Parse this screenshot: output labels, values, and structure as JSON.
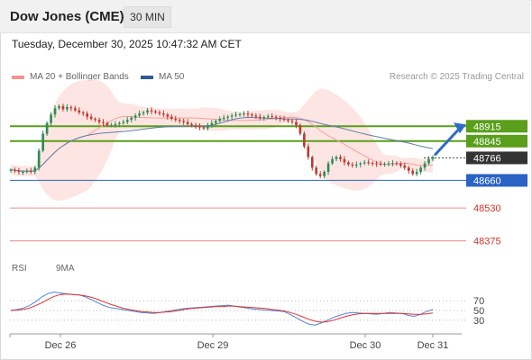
{
  "header": {
    "title": "Dow Jones (CME)",
    "timeframe": "30 MIN"
  },
  "datetime": "Tuesday, December 30, 2025 10:47:32 AM CET",
  "legend": {
    "ma_bollinger": "MA 20 + Bollinger Bands",
    "ma50": "MA 50",
    "credit": "Research © 2025 Trading Central"
  },
  "rsi_legend": {
    "rsi": "RSI",
    "ma9": "9MA"
  },
  "colors": {
    "green_level": "#5a9e1b",
    "blue_level": "#2a63c4",
    "red_level": "#f08a80",
    "current_price_bg": "#333333",
    "bollinger_fill": "#fde0de",
    "ma20": "#f0a19a",
    "ma50": "#5f7fa9",
    "candle_up": "#2e8b57",
    "candle_down": "#c0392b",
    "arrow": "#2f6dc5",
    "rsi_line": "#4f86d9",
    "rsi_ma": "#e03030"
  },
  "chart_data": [
    {
      "type": "line",
      "title": "",
      "x_labels": [
        "Dec 26",
        "Dec 29",
        "Dec 30",
        "Dec 31"
      ],
      "ylim": [
        48310,
        49090
      ],
      "levels": [
        {
          "label": "48915",
          "value": 48915,
          "kind": "resistance"
        },
        {
          "label": "48845",
          "value": 48845,
          "kind": "resistance"
        },
        {
          "label": "48766",
          "value": 48766,
          "kind": "current_price"
        },
        {
          "label": "48660",
          "value": 48660,
          "kind": "pivot"
        },
        {
          "label": "48530",
          "value": 48530,
          "kind": "support"
        },
        {
          "label": "48375",
          "value": 48375,
          "kind": "support"
        }
      ],
      "close_series": [
        48710,
        48705,
        48700,
        48700,
        48705,
        48700,
        48720,
        48800,
        48880,
        48930,
        48970,
        49000,
        49010,
        48995,
        49005,
        49000,
        48990,
        48980,
        48975,
        48960,
        48950,
        48945,
        48935,
        48930,
        48920,
        48920,
        48925,
        48930,
        48935,
        48945,
        48955,
        48965,
        48975,
        48980,
        48990,
        48985,
        48980,
        48975,
        48970,
        48960,
        48950,
        48945,
        48940,
        48935,
        48925,
        48920,
        48915,
        48910,
        48905,
        48920,
        48930,
        48940,
        48950,
        48955,
        48960,
        48965,
        48970,
        48972,
        48975,
        48970,
        48965,
        48960,
        48955,
        48958,
        48962,
        48960,
        48955,
        48950,
        48945,
        48940,
        48935,
        48920,
        48880,
        48820,
        48770,
        48720,
        48690,
        48680,
        48700,
        48740,
        48760,
        48770,
        48760,
        48745,
        48735,
        48730,
        48735,
        48740,
        48745,
        48742,
        48740,
        48738,
        48735,
        48738,
        48740,
        48742,
        48738,
        48730,
        48720,
        48705,
        48690,
        48700,
        48720,
        48740,
        48760,
        48770
      ],
      "forecast_target": 48915
    },
    {
      "type": "line",
      "title": "",
      "ylim": [
        0,
        100
      ],
      "levels": [
        {
          "label": "70",
          "value": 70
        },
        {
          "label": "50",
          "value": 50
        },
        {
          "label": "30",
          "value": 30
        }
      ],
      "series": [
        {
          "name": "RSI",
          "values": [
            50,
            52,
            55,
            60,
            68,
            78,
            85,
            88,
            86,
            84,
            83,
            82,
            78,
            72,
            66,
            60,
            56,
            54,
            52,
            50,
            48,
            46,
            45,
            44,
            46,
            48,
            50,
            52,
            54,
            55,
            56,
            57,
            58,
            59,
            60,
            61,
            59,
            57,
            55,
            53,
            52,
            51,
            50,
            49,
            48,
            42,
            35,
            28,
            22,
            20,
            24,
            30,
            36,
            40,
            44,
            46,
            45,
            44,
            43,
            42,
            44,
            46,
            45,
            44,
            40,
            38,
            42,
            48,
            52
          ]
        },
        {
          "name": "9MA",
          "values": [
            50,
            51,
            52,
            55,
            60,
            66,
            73,
            79,
            83,
            84,
            83,
            82,
            80,
            77,
            73,
            68,
            63,
            59,
            55,
            52,
            50,
            48,
            47,
            46,
            46,
            47,
            48,
            50,
            52,
            54,
            55,
            56,
            57,
            58,
            58,
            59,
            59,
            58,
            57,
            56,
            55,
            54,
            52,
            51,
            49,
            46,
            42,
            37,
            32,
            28,
            26,
            27,
            30,
            34,
            38,
            41,
            43,
            44,
            44,
            44,
            44,
            44,
            44,
            44,
            43,
            42,
            42,
            43,
            45
          ]
        }
      ]
    }
  ]
}
